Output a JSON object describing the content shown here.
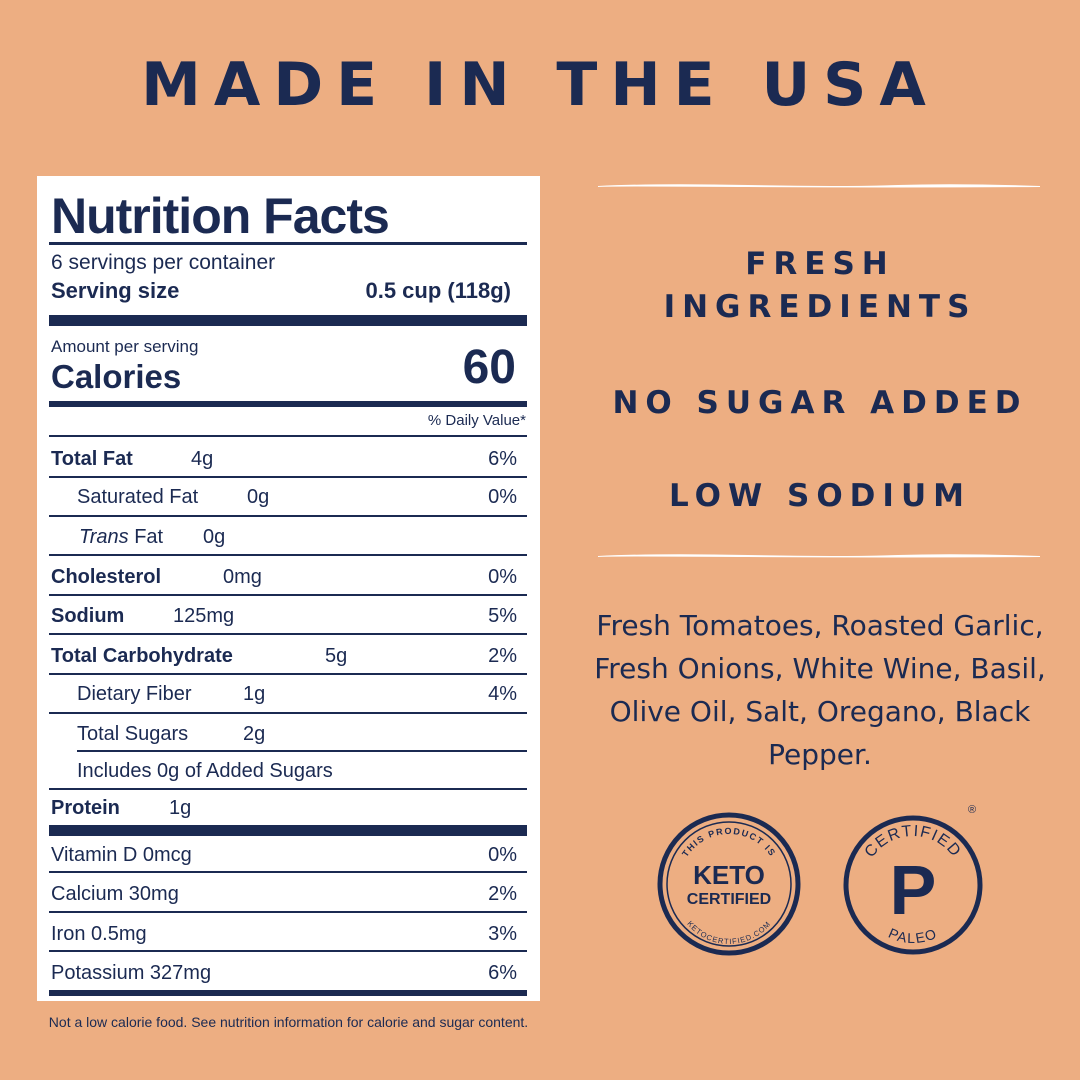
{
  "headline": "MADE IN THE USA",
  "nutrition": {
    "title": "Nutrition Facts",
    "servings_per_container": "6 servings per container",
    "serving_size_label": "Serving size",
    "serving_size_value": "0.5 cup (118g)",
    "amount_per_serving": "Amount per serving",
    "calories_label": "Calories",
    "calories_value": "60",
    "daily_value_header": "% Daily Value*",
    "rows": [
      {
        "name": "Total Fat",
        "amount": "4g",
        "dv": "6%"
      },
      {
        "name": "Saturated Fat",
        "amount": "0g",
        "dv": "0%"
      },
      {
        "name_italic": "Trans",
        "name": "Fat",
        "amount": "0g",
        "dv": ""
      },
      {
        "name": "Cholesterol",
        "amount": "0mg",
        "dv": "0%"
      },
      {
        "name": "Sodium",
        "amount": "125mg",
        "dv": "5%"
      },
      {
        "name": "Total Carbohydrate",
        "amount": "5g",
        "dv": "2%"
      },
      {
        "name": "Dietary Fiber",
        "amount": "1g",
        "dv": "4%"
      },
      {
        "name": "Total Sugars",
        "amount": "2g",
        "dv": ""
      },
      {
        "name": "Includes 0g of Added Sugars",
        "amount": "",
        "dv": ""
      },
      {
        "name": "Protein",
        "amount": "1g",
        "dv": ""
      }
    ],
    "vitamins": [
      {
        "name": "Vitamin D 0mcg",
        "dv": "0%"
      },
      {
        "name": "Calcium 30mg",
        "dv": "2%"
      },
      {
        "name": "Iron 0.5mg",
        "dv": "3%"
      },
      {
        "name": "Potassium 327mg",
        "dv": "6%"
      }
    ],
    "footnote": "Not a low calorie food. See nutrition information for calorie and sugar content."
  },
  "claims": {
    "fresh": "FRESH",
    "ingredients": "INGREDIENTS",
    "no_sugar": "NO SUGAR ADDED",
    "low_sodium": "LOW SODIUM"
  },
  "ingredient_list": "Fresh Tomatoes, Roasted Garlic, Fresh Onions, White Wine, Basil, Olive Oil, Salt, Oregano, Black Pepper.",
  "badges": {
    "keto": {
      "top_text": "THIS PRODUCT IS",
      "line1": "KETO",
      "line2": "CERTIFIED",
      "bottom_text": "KETOCERTIFIED.COM"
    },
    "paleo": {
      "top_text": "CERTIFIED",
      "letter": "P",
      "bottom_text": "PALEO",
      "registered": "®"
    }
  },
  "colors": {
    "background": "#EDAE82",
    "navy": "#1B2A52",
    "panel": "#FFFFFF"
  }
}
